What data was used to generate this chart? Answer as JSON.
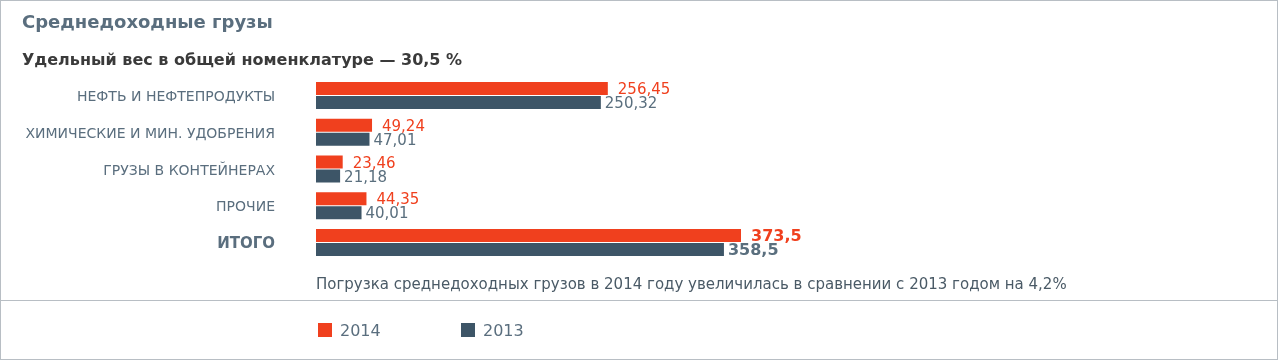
{
  "chart_data": {
    "type": "bar",
    "orientation": "horizontal",
    "title": "Среднедоходные грузы",
    "subtitle": "Удельный вес в общей номенклатуре — 30,5 %",
    "categories": [
      "НЕФТЬ И НЕФТЕПРОДУКТЫ",
      "ХИМИЧЕСКИЕ И МИН. УДОБРЕНИЯ",
      "ГРУЗЫ В КОНТЕЙНЕРАХ",
      "ПРОЧИЕ",
      "ИТОГО"
    ],
    "series": [
      {
        "name": "2014",
        "color": "#f0401e",
        "values": [
          256.45,
          49.24,
          23.46,
          44.35,
          373.5
        ],
        "value_labels": [
          "256,45",
          "49,24",
          "23,46",
          "44,35",
          "373,5"
        ]
      },
      {
        "name": "2013",
        "color": "#3d5567",
        "values": [
          250.32,
          47.01,
          21.18,
          40.01,
          358.5
        ],
        "value_labels": [
          "250,32",
          "47,01",
          "21,18",
          "40,01",
          "358,5"
        ]
      }
    ],
    "annotations": [
      "Погрузка среднедоходных грузов в 2014 году увеличилась в сравнении с 2013 годом на 4,2%"
    ],
    "legend": "bottom"
  }
}
